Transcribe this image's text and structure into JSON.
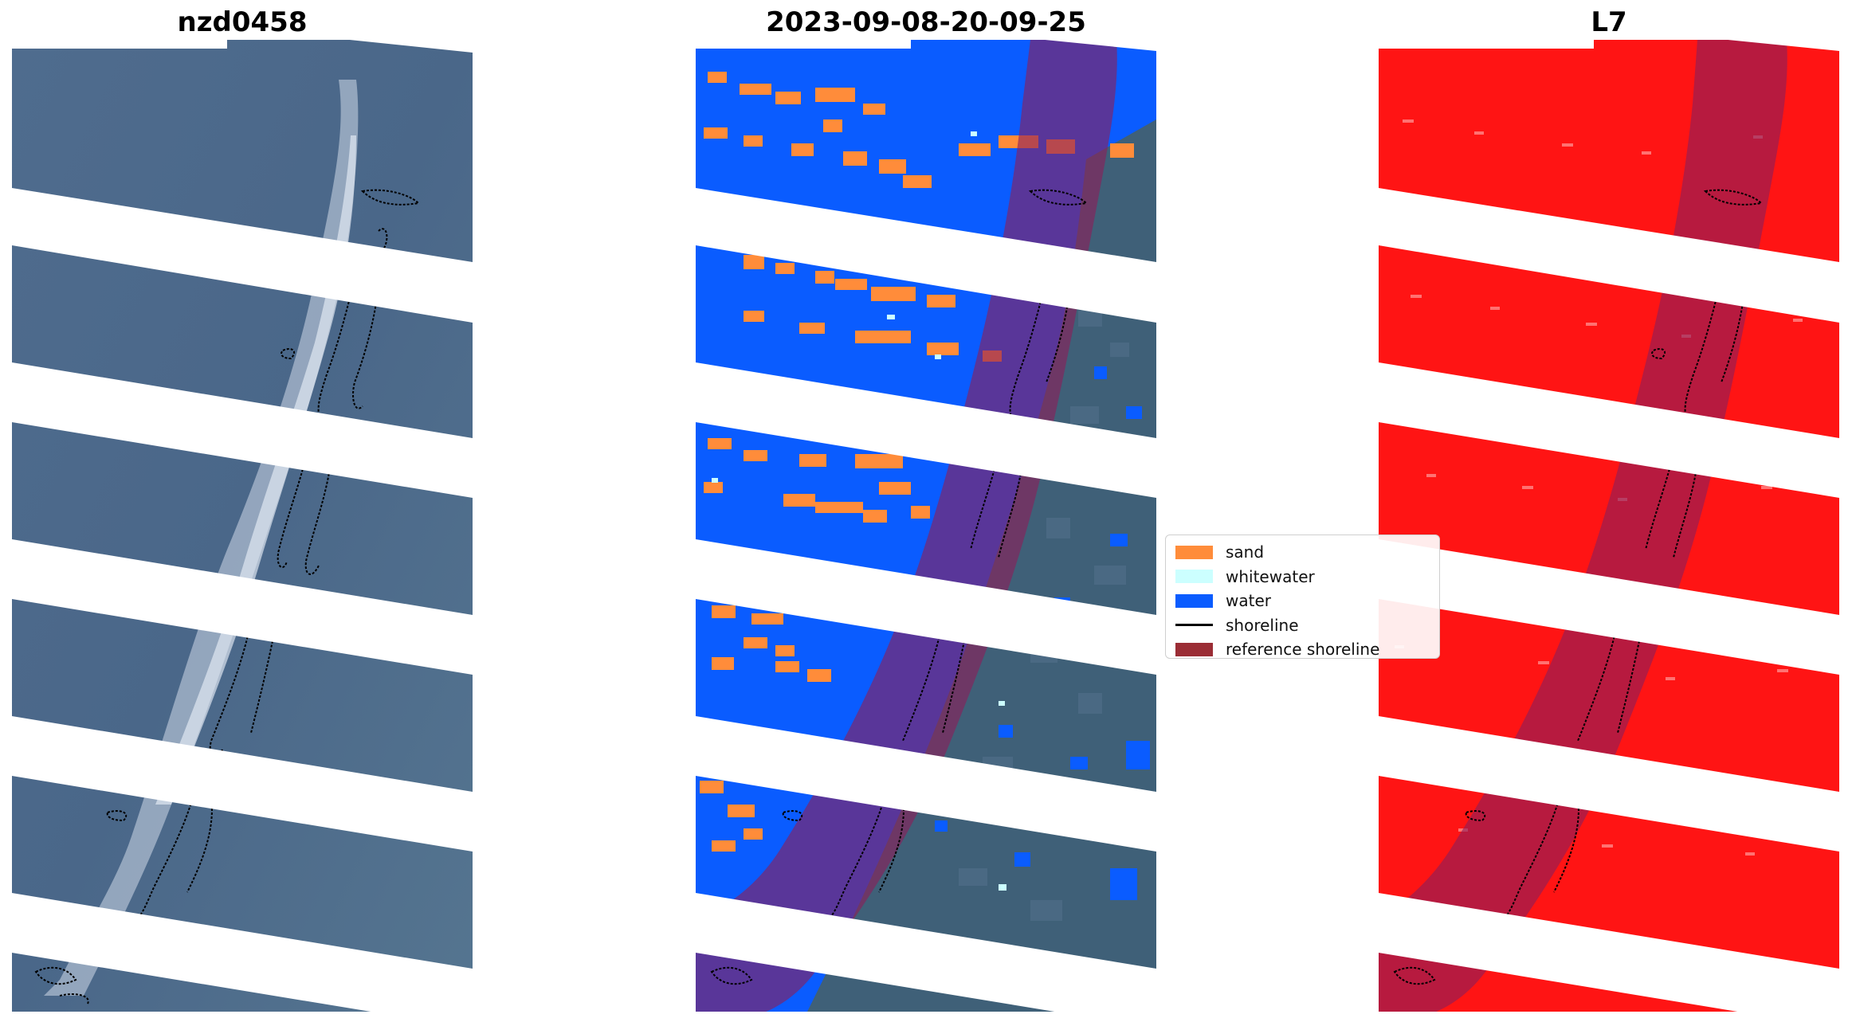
{
  "figure": {
    "panels": [
      {
        "title": "nzd0458",
        "content": "rgb-satellite-image"
      },
      {
        "title": "2023-09-08-20-09-25",
        "content": "classified-image"
      },
      {
        "title": "L7",
        "content": "ndwi-image"
      }
    ]
  },
  "legend": {
    "items": [
      {
        "label": "sand",
        "color": "#ff8c3a",
        "kind": "patch"
      },
      {
        "label": "whitewater",
        "color": "#ccffff",
        "kind": "patch"
      },
      {
        "label": "water",
        "color": "#0a5cff",
        "kind": "patch"
      },
      {
        "label": "shoreline",
        "color": "#000000",
        "kind": "line"
      },
      {
        "label": "reference shoreline",
        "color": "#9b2d35",
        "kind": "patch"
      }
    ]
  },
  "colors": {
    "rgb_land": "#4d6a8c",
    "water": "#0a5cff",
    "sand": "#ff8c3a",
    "whitewater": "#ccffff",
    "ndwi": "#ff1a1a",
    "reference_overlay": "#8b1f5a",
    "scanline_gap": "#ffffff"
  }
}
